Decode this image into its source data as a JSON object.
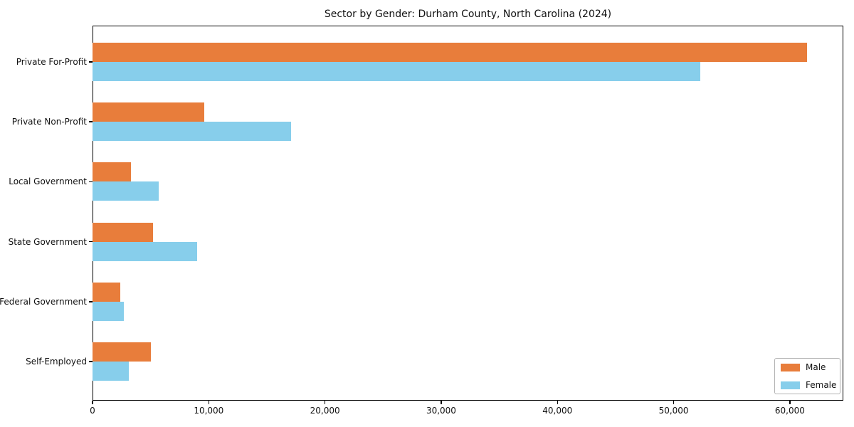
{
  "chart_data": {
    "type": "bar",
    "orientation": "horizontal",
    "title": "Sector by Gender: Durham County, North Carolina (2024)",
    "categories": [
      "Private For-Profit",
      "Private Non-Profit",
      "Local Government",
      "State Government",
      "Federal Government",
      "Self-Employed"
    ],
    "series": [
      {
        "name": "Male",
        "color": "#e87d3b",
        "values": [
          61500,
          9600,
          3300,
          5200,
          2400,
          5000
        ]
      },
      {
        "name": "Female",
        "color": "#87ceeb",
        "values": [
          52300,
          17100,
          5700,
          9000,
          2700,
          3100
        ]
      }
    ],
    "xlabel": "",
    "ylabel": "",
    "xlim": [
      0,
      64600
    ],
    "xticks": [
      {
        "value": 0,
        "label": "0"
      },
      {
        "value": 10000,
        "label": "10,000"
      },
      {
        "value": 20000,
        "label": "20,000"
      },
      {
        "value": 30000,
        "label": "30,000"
      },
      {
        "value": 40000,
        "label": "40,000"
      },
      {
        "value": 50000,
        "label": "50,000"
      },
      {
        "value": 60000,
        "label": "60,000"
      }
    ],
    "grid": false,
    "legend_position": "lower right",
    "plot_background": "#ffffff",
    "spine_color": "#000000"
  }
}
